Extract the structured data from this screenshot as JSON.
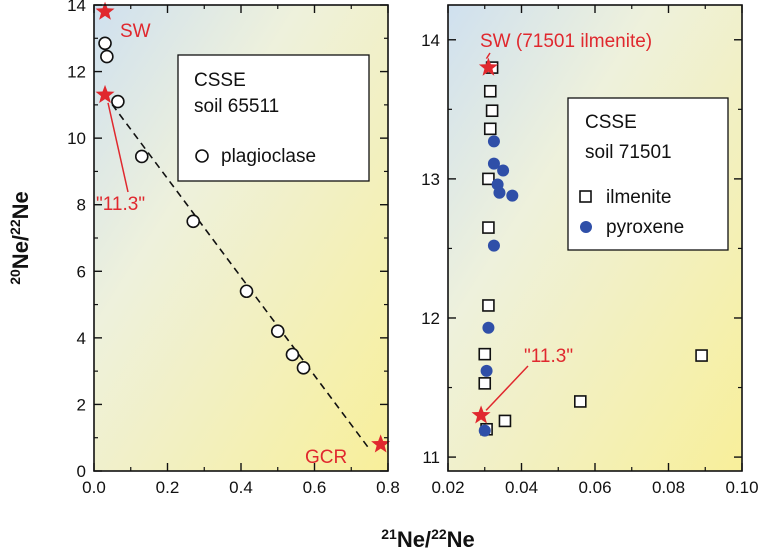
{
  "figure": {
    "ylabel": "20Ne/22Ne",
    "xlabel": "21Ne/22Ne",
    "colors": {
      "red": "#e0282e",
      "blue": "#2f4fa8",
      "frame": "#111111"
    }
  },
  "chart_data": [
    {
      "type": "scatter",
      "xlim": [
        0.0,
        0.8
      ],
      "ylim": [
        0,
        14
      ],
      "xticks": [
        "0.0",
        "0.2",
        "0.4",
        "0.6",
        "0.8"
      ],
      "yticks": [
        "0",
        "2",
        "4",
        "6",
        "8",
        "10",
        "12",
        "14"
      ],
      "legend": {
        "title1": "CSSE",
        "title2": "soil 65511",
        "entry": "plagioclase",
        "placement": "top-right"
      },
      "series": [
        {
          "name": "plagioclase",
          "marker": "open-circle",
          "points": [
            [
              0.03,
              12.85
            ],
            [
              0.035,
              12.45
            ],
            [
              0.065,
              11.1
            ],
            [
              0.13,
              9.45
            ],
            [
              0.27,
              7.5
            ],
            [
              0.415,
              5.4
            ],
            [
              0.5,
              4.2
            ],
            [
              0.54,
              3.5
            ],
            [
              0.57,
              3.1
            ]
          ]
        }
      ],
      "endmembers": [
        {
          "label": "SW",
          "x": 0.03,
          "y": 13.8
        },
        {
          "label": "\"11.3\"",
          "x": 0.03,
          "y": 11.3
        },
        {
          "label": "GCR",
          "x": 0.78,
          "y": 0.8
        }
      ],
      "mixing_line": [
        [
          0.03,
          11.3
        ],
        [
          0.75,
          0.65
        ]
      ]
    },
    {
      "type": "scatter",
      "xlim": [
        0.02,
        0.1
      ],
      "ylim": [
        10.9,
        14.25
      ],
      "xticks": [
        "0.02",
        "0.04",
        "0.06",
        "0.08",
        "0.10"
      ],
      "yticks": [
        "11",
        "12",
        "13",
        "14"
      ],
      "legend": {
        "title1": "CSSE",
        "title2": "soil 71501",
        "entry1": "ilmenite",
        "entry2": "pyroxene",
        "placement": "top-right"
      },
      "series": [
        {
          "name": "ilmenite",
          "marker": "open-square",
          "points": [
            [
              0.032,
              13.8
            ],
            [
              0.0315,
              13.63
            ],
            [
              0.032,
              13.49
            ],
            [
              0.0315,
              13.36
            ],
            [
              0.031,
              13.0
            ],
            [
              0.031,
              12.65
            ],
            [
              0.031,
              12.09
            ],
            [
              0.03,
              11.74
            ],
            [
              0.03,
              11.53
            ],
            [
              0.0305,
              11.2
            ],
            [
              0.0355,
              11.26
            ],
            [
              0.056,
              11.4
            ],
            [
              0.089,
              11.73
            ]
          ]
        },
        {
          "name": "pyroxene",
          "marker": "filled-circle",
          "points": [
            [
              0.0325,
              13.27
            ],
            [
              0.0325,
              13.11
            ],
            [
              0.035,
              13.06
            ],
            [
              0.0335,
              12.96
            ],
            [
              0.034,
              12.9
            ],
            [
              0.0375,
              12.88
            ],
            [
              0.0325,
              12.52
            ],
            [
              0.031,
              11.93
            ],
            [
              0.0305,
              11.62
            ],
            [
              0.03,
              11.19
            ]
          ]
        }
      ],
      "endmembers": [
        {
          "label": "SW (71501 ilmenite)",
          "x": 0.031,
          "y": 13.8
        },
        {
          "label": "\"11.3\"",
          "x": 0.029,
          "y": 11.3
        }
      ]
    }
  ]
}
